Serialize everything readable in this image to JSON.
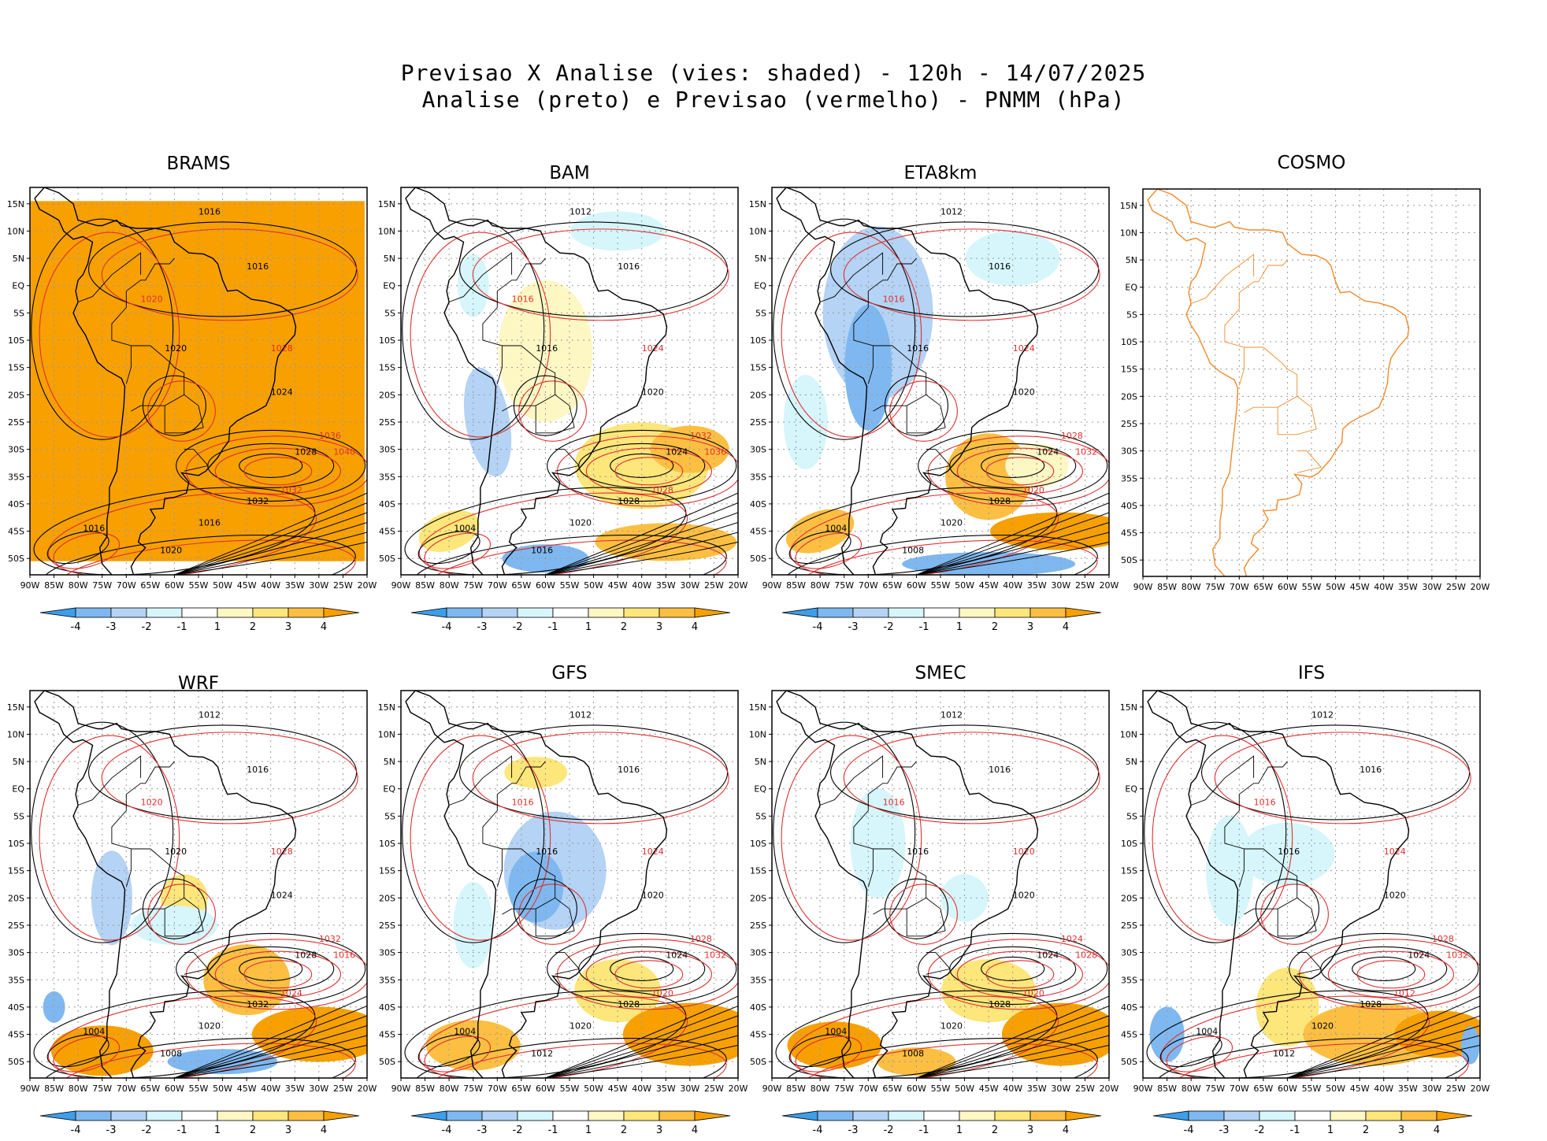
{
  "title": {
    "line1": "Previsao X Analise (vies: shaded) - 120h - 14/07/2025",
    "line2": "Analise (preto) e Previsao (vermelho) - PNMM (hPa)"
  },
  "colors": {
    "neg4": "#3d9eea",
    "neg3": "#7fb8f0",
    "neg2": "#b4d3f5",
    "neg1": "#d6f6fb",
    "zero": "#ffffff",
    "pos1": "#fdf7c4",
    "pos2": "#fde67a",
    "pos3": "#fcbf42",
    "pos4": "#f7a000",
    "analysis_contour": "#000000",
    "forecast_contour": "#e03030",
    "cosmo_coast": "#f08a2a"
  },
  "axes": {
    "lat_labels": [
      "15N",
      "10N",
      "5N",
      "EQ",
      "5S",
      "10S",
      "15S",
      "20S",
      "25S",
      "30S",
      "35S",
      "40S",
      "45S",
      "50S"
    ],
    "lon_labels": [
      "90W",
      "85W",
      "80W",
      "75W",
      "70W",
      "65W",
      "60W",
      "55W",
      "50W",
      "45W",
      "40W",
      "35W",
      "30W",
      "25W",
      "20W"
    ]
  },
  "colorbar": {
    "labels": [
      "-4",
      "-3",
      "-2",
      "-1",
      "1",
      "2",
      "3",
      "4"
    ]
  },
  "panels": [
    {
      "name": "BRAMS",
      "contours": [
        "1016",
        "1016",
        "1020",
        "1024",
        "1028",
        "1032",
        "1016",
        "1020",
        "1016"
      ],
      "forecast_contours": [
        "1020",
        "1028",
        "1036",
        "1040",
        "1032"
      ]
    },
    {
      "name": "BAM",
      "contours": [
        "1012",
        "1016",
        "1016",
        "1020",
        "1024",
        "1028",
        "1020",
        "1016",
        "1004"
      ],
      "forecast_contours": [
        "1016",
        "1024",
        "1032",
        "1036",
        "1028"
      ]
    },
    {
      "name": "ETA8km",
      "contours": [
        "1012",
        "1016",
        "1016",
        "1020",
        "1024",
        "1028",
        "1020",
        "1008",
        "1004"
      ],
      "forecast_contours": [
        "1016",
        "1024",
        "1028",
        "1032",
        "1020"
      ]
    },
    {
      "name": "COSMO",
      "contours": [],
      "forecast_contours": []
    },
    {
      "name": "WRF",
      "contours": [
        "1012",
        "1016",
        "1020",
        "1024",
        "1028",
        "1032",
        "1020",
        "1008",
        "1004"
      ],
      "forecast_contours": [
        "1020",
        "1028",
        "1032",
        "1016",
        "1024"
      ]
    },
    {
      "name": "GFS",
      "contours": [
        "1012",
        "1016",
        "1016",
        "1020",
        "1024",
        "1028",
        "1020",
        "1012",
        "1004"
      ],
      "forecast_contours": [
        "1016",
        "1024",
        "1028",
        "1032",
        "1020"
      ]
    },
    {
      "name": "SMEC",
      "contours": [
        "1012",
        "1016",
        "1016",
        "1020",
        "1024",
        "1028",
        "1020",
        "1008",
        "1004"
      ],
      "forecast_contours": [
        "1016",
        "1020",
        "1024",
        "1028",
        "1020"
      ]
    },
    {
      "name": "IFS",
      "contours": [
        "1012",
        "1016",
        "1016",
        "1020",
        "1024",
        "1028",
        "1020",
        "1012",
        "1004"
      ],
      "forecast_contours": [
        "1016",
        "1024",
        "1028",
        "1032",
        "1012"
      ]
    }
  ]
}
